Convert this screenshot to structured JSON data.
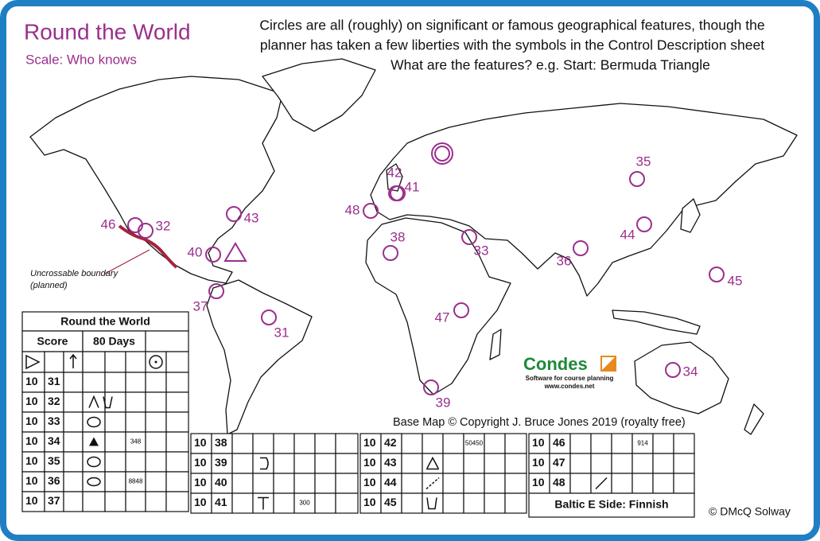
{
  "header": {
    "title": "Round the World",
    "scale": "Scale: Who knows"
  },
  "intro": [
    "Circles are all (roughly) on significant or famous geographical features, though the",
    "planner has taken a few liberties with the symbols in the Control Description sheet",
    "What are the features? e.g. Start: Bermuda Triangle"
  ],
  "annotation": [
    "Uncrossable boundary",
    "(planned)"
  ],
  "controls": [
    "46",
    "32",
    "43",
    "40",
    "37",
    "31",
    "48",
    "42",
    "41",
    "38",
    "33",
    "47",
    "39",
    "36",
    "35",
    "44",
    "45",
    "34"
  ],
  "logo": {
    "name": "Condes",
    "tagline": "Software for course planning",
    "url": "www.condes.net"
  },
  "copyright": "Base Map © Copyright J. Bruce Jones 2019 (royalty free)",
  "credit": "© DMcQ Solway",
  "sheet": {
    "title": "Round the World",
    "score": "Score",
    "course": "80 Days",
    "tables": [
      {
        "rows": [
          {
            "points": 10,
            "code": 31
          },
          {
            "points": 10,
            "code": 32
          },
          {
            "points": 10,
            "code": 33
          },
          {
            "points": 10,
            "code": 34,
            "note": 348
          },
          {
            "points": 10,
            "code": 35
          },
          {
            "points": 10,
            "code": 36,
            "note": 8848
          },
          {
            "points": 10,
            "code": 37
          }
        ]
      },
      {
        "rows": [
          {
            "points": 10,
            "code": 38
          },
          {
            "points": 10,
            "code": 39
          },
          {
            "points": 10,
            "code": 40
          },
          {
            "points": 10,
            "code": 41,
            "note": 300
          }
        ]
      },
      {
        "rows": [
          {
            "points": 10,
            "code": 42,
            "note": 50450
          },
          {
            "points": 10,
            "code": 43
          },
          {
            "points": 10,
            "code": 44
          },
          {
            "points": 10,
            "code": 45
          }
        ]
      },
      {
        "rows": [
          {
            "points": 10,
            "code": 46,
            "note": 914
          },
          {
            "points": 10,
            "code": 47
          },
          {
            "points": 10,
            "code": 48
          }
        ],
        "footer": "Baltic E Side: Finnish"
      }
    ]
  }
}
